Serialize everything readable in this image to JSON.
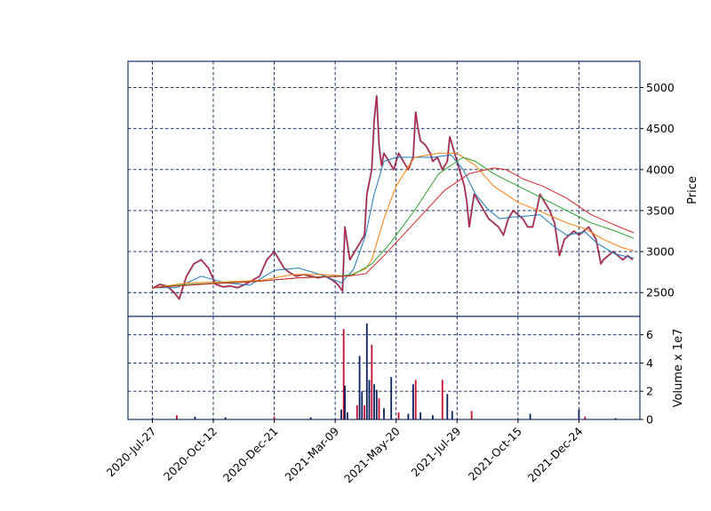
{
  "chart_data": {
    "type": "candlestick",
    "price_panel": {
      "ylabel": "Price",
      "ylim": [
        2210,
        5320
      ],
      "yticks": [
        2500,
        3000,
        3500,
        4000,
        4500,
        5000
      ],
      "grid": true,
      "series": [
        {
          "kind": "price",
          "color": "#c8102e",
          "points": [
            [
              0,
              2550
            ],
            [
              6,
              2600
            ],
            [
              12,
              2580
            ],
            [
              18,
              2500
            ],
            [
              22,
              2420
            ],
            [
              28,
              2700
            ],
            [
              34,
              2850
            ],
            [
              40,
              2900
            ],
            [
              46,
              2800
            ],
            [
              52,
              2600
            ],
            [
              58,
              2570
            ],
            [
              64,
              2580
            ],
            [
              70,
              2560
            ],
            [
              76,
              2600
            ],
            [
              82,
              2650
            ],
            [
              88,
              2700
            ],
            [
              94,
              2900
            ],
            [
              100,
              3000
            ],
            [
              104,
              2900
            ],
            [
              108,
              2800
            ],
            [
              112,
              2750
            ],
            [
              118,
              2700
            ],
            [
              124,
              2720
            ],
            [
              130,
              2700
            ],
            [
              136,
              2680
            ],
            [
              142,
              2700
            ],
            [
              148,
              2650
            ],
            [
              152,
              2600
            ],
            [
              156,
              2520
            ],
            [
              158,
              3300
            ],
            [
              162,
              2900
            ],
            [
              166,
              3000
            ],
            [
              170,
              3100
            ],
            [
              174,
              3200
            ],
            [
              176,
              3700
            ],
            [
              180,
              4000
            ],
            [
              182,
              4600
            ],
            [
              184,
              4900
            ],
            [
              186,
              4300
            ],
            [
              188,
              4050
            ],
            [
              190,
              4200
            ],
            [
              194,
              4100
            ],
            [
              198,
              4000
            ],
            [
              202,
              4200
            ],
            [
              206,
              4100
            ],
            [
              210,
              4000
            ],
            [
              214,
              4150
            ],
            [
              216,
              4700
            ],
            [
              218,
              4500
            ],
            [
              220,
              4350
            ],
            [
              224,
              4300
            ],
            [
              228,
              4200
            ],
            [
              230,
              4100
            ],
            [
              234,
              4150
            ],
            [
              238,
              4000
            ],
            [
              242,
              4100
            ],
            [
              244,
              4400
            ],
            [
              246,
              4300
            ],
            [
              248,
              4200
            ],
            [
              252,
              4000
            ],
            [
              256,
              3800
            ],
            [
              258,
              3600
            ],
            [
              260,
              3300
            ],
            [
              264,
              3700
            ],
            [
              268,
              3600
            ],
            [
              272,
              3500
            ],
            [
              276,
              3400
            ],
            [
              280,
              3350
            ],
            [
              284,
              3300
            ],
            [
              288,
              3200
            ],
            [
              292,
              3400
            ],
            [
              296,
              3500
            ],
            [
              300,
              3450
            ],
            [
              304,
              3400
            ],
            [
              308,
              3300
            ],
            [
              312,
              3300
            ],
            [
              316,
              3550
            ],
            [
              318,
              3700
            ],
            [
              322,
              3600
            ],
            [
              326,
              3500
            ],
            [
              330,
              3350
            ],
            [
              332,
              3150
            ],
            [
              334,
              2950
            ],
            [
              338,
              3150
            ],
            [
              342,
              3200
            ],
            [
              346,
              3250
            ],
            [
              350,
              3200
            ],
            [
              354,
              3250
            ],
            [
              358,
              3300
            ],
            [
              362,
              3200
            ],
            [
              364,
              3150
            ],
            [
              366,
              3000
            ],
            [
              368,
              2850
            ],
            [
              370,
              2900
            ],
            [
              374,
              2950
            ],
            [
              378,
              3000
            ],
            [
              382,
              2950
            ],
            [
              386,
              2900
            ],
            [
              390,
              2950
            ],
            [
              394,
              2900
            ]
          ]
        },
        {
          "name": "",
          "color": "#1f77b4",
          "points": [
            [
              0,
              2560
            ],
            [
              20,
              2560
            ],
            [
              40,
              2700
            ],
            [
              60,
              2620
            ],
            [
              80,
              2590
            ],
            [
              100,
              2770
            ],
            [
              120,
              2800
            ],
            [
              140,
              2710
            ],
            [
              155,
              2620
            ],
            [
              165,
              2780
            ],
            [
              175,
              3200
            ],
            [
              182,
              3700
            ],
            [
              190,
              4100
            ],
            [
              200,
              4150
            ],
            [
              215,
              4150
            ],
            [
              230,
              4150
            ],
            [
              245,
              4180
            ],
            [
              255,
              4000
            ],
            [
              265,
              3700
            ],
            [
              275,
              3520
            ],
            [
              285,
              3400
            ],
            [
              295,
              3420
            ],
            [
              305,
              3430
            ],
            [
              318,
              3450
            ],
            [
              330,
              3300
            ],
            [
              340,
              3200
            ],
            [
              355,
              3240
            ],
            [
              365,
              3100
            ],
            [
              380,
              2970
            ],
            [
              395,
              2920
            ]
          ]
        },
        {
          "name": "",
          "color": "#ff7f0e",
          "points": [
            [
              0,
              2560
            ],
            [
              30,
              2620
            ],
            [
              60,
              2630
            ],
            [
              90,
              2650
            ],
            [
              115,
              2720
            ],
            [
              140,
              2720
            ],
            [
              160,
              2700
            ],
            [
              175,
              2790
            ],
            [
              180,
              2900
            ],
            [
              190,
              3400
            ],
            [
              200,
              3800
            ],
            [
              215,
              4150
            ],
            [
              235,
              4200
            ],
            [
              250,
              4200
            ],
            [
              265,
              4050
            ],
            [
              280,
              3800
            ],
            [
              300,
              3600
            ],
            [
              320,
              3480
            ],
            [
              340,
              3350
            ],
            [
              355,
              3280
            ],
            [
              370,
              3150
            ],
            [
              385,
              3050
            ],
            [
              395,
              3010
            ]
          ]
        },
        {
          "name": "",
          "color": "#2ca02c",
          "points": [
            [
              0,
              2560
            ],
            [
              30,
              2600
            ],
            [
              60,
              2620
            ],
            [
              90,
              2640
            ],
            [
              120,
              2680
            ],
            [
              150,
              2700
            ],
            [
              165,
              2720
            ],
            [
              180,
              2850
            ],
            [
              195,
              3100
            ],
            [
              215,
              3500
            ],
            [
              235,
              3950
            ],
            [
              255,
              4150
            ],
            [
              265,
              4100
            ],
            [
              280,
              3950
            ],
            [
              300,
              3800
            ],
            [
              320,
              3650
            ],
            [
              340,
              3500
            ],
            [
              360,
              3350
            ],
            [
              380,
              3250
            ],
            [
              395,
              3160
            ]
          ]
        },
        {
          "name": "",
          "color": "#d62728",
          "points": [
            [
              0,
              2560
            ],
            [
              40,
              2600
            ],
            [
              80,
              2630
            ],
            [
              120,
              2680
            ],
            [
              160,
              2700
            ],
            [
              175,
              2730
            ],
            [
              190,
              2950
            ],
            [
              215,
              3350
            ],
            [
              240,
              3750
            ],
            [
              260,
              3950
            ],
            [
              280,
              4020
            ],
            [
              290,
              4000
            ],
            [
              305,
              3880
            ],
            [
              320,
              3800
            ],
            [
              340,
              3650
            ],
            [
              360,
              3450
            ],
            [
              380,
              3320
            ],
            [
              395,
              3230
            ]
          ]
        }
      ]
    },
    "volume_panel": {
      "ylabel": "Volume x 1e7",
      "ylim": [
        0,
        7.3
      ],
      "yticks": [
        0,
        2,
        4,
        6
      ],
      "grid": true,
      "bars": [
        [
          0,
          0.1
        ],
        [
          20,
          0.3
        ],
        [
          35,
          0.2
        ],
        [
          60,
          0.15
        ],
        [
          100,
          0.2
        ],
        [
          130,
          0.15
        ],
        [
          155,
          0.7
        ],
        [
          157,
          6.4
        ],
        [
          158,
          2.4
        ],
        [
          160,
          0.5
        ],
        [
          168,
          1.0
        ],
        [
          170,
          4.5
        ],
        [
          172,
          2.0
        ],
        [
          174,
          1.0
        ],
        [
          176,
          6.8
        ],
        [
          178,
          2.8
        ],
        [
          180,
          5.3
        ],
        [
          182,
          2.5
        ],
        [
          184,
          2.1
        ],
        [
          186,
          1.5
        ],
        [
          190,
          0.8
        ],
        [
          196,
          3.0
        ],
        [
          202,
          0.5
        ],
        [
          210,
          0.4
        ],
        [
          214,
          2.5
        ],
        [
          216,
          2.8
        ],
        [
          220,
          0.5
        ],
        [
          230,
          0.3
        ],
        [
          238,
          2.8
        ],
        [
          242,
          1.8
        ],
        [
          246,
          0.6
        ],
        [
          262,
          0.6
        ],
        [
          310,
          0.4
        ],
        [
          350,
          0.7
        ],
        [
          355,
          0.2
        ],
        [
          380,
          0.1
        ]
      ]
    },
    "x_tick_labels": [
      "2020-Jul-27",
      "2020-Oct-12",
      "2020-Dec-21",
      "2021-Mar-09",
      "2021-May-20",
      "2021-Jul-29",
      "2021-Oct-15",
      "2021-Dec-24"
    ],
    "x_tick_index": [
      0,
      50,
      100,
      150,
      200,
      250,
      300,
      350
    ],
    "x_range": [
      -20,
      400
    ]
  }
}
